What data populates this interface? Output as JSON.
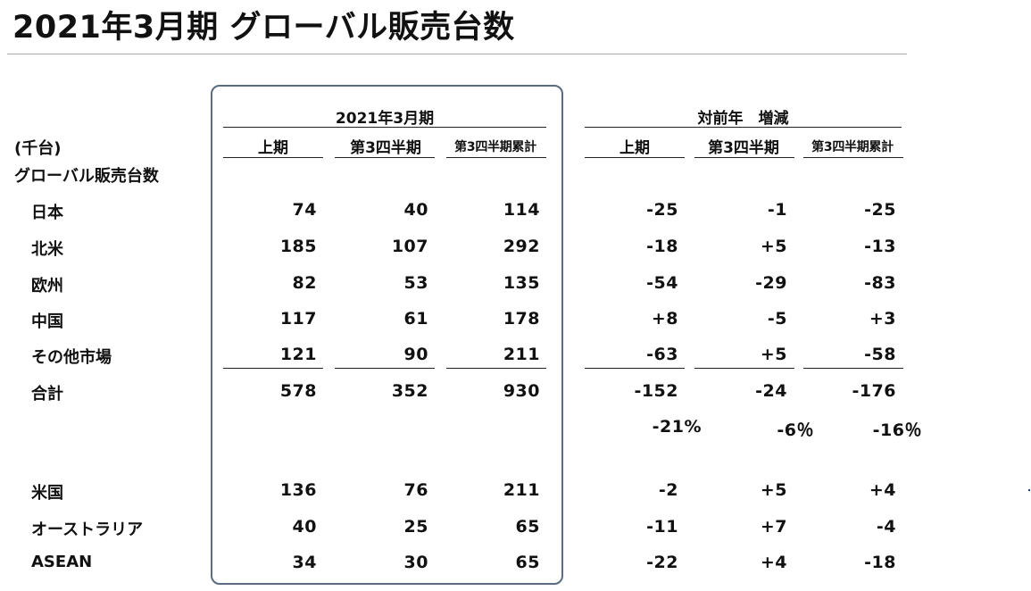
{
  "title": "2021年3月期 グローバル販売台数",
  "unit_label": "(千台)",
  "section_label": "グローバル販売台数",
  "group_current": "2021年3月期",
  "group_yoy": "対前年　増減",
  "col_headers": [
    "上期",
    "第3四半期",
    "第3四半期累計"
  ],
  "rows_main": [
    {
      "label": "日本",
      "current": [
        "74",
        "40",
        "114"
      ],
      "yoy": [
        "-25",
        "-1",
        "-25"
      ]
    },
    {
      "label": "北米",
      "current": [
        "185",
        "107",
        "292"
      ],
      "yoy": [
        "-18",
        "+5",
        "-13"
      ]
    },
    {
      "label": "欧州",
      "current": [
        "82",
        "53",
        "135"
      ],
      "yoy": [
        "-54",
        "-29",
        "-83"
      ]
    },
    {
      "label": "中国",
      "current": [
        "117",
        "61",
        "178"
      ],
      "yoy": [
        "+8",
        "-5",
        "+3"
      ]
    },
    {
      "label": "その他市場",
      "current": [
        "121",
        "90",
        "211"
      ],
      "yoy": [
        "-63",
        "+5",
        "-58"
      ]
    }
  ],
  "total": {
    "label": "合計",
    "current": [
      "578",
      "352",
      "930"
    ],
    "yoy": [
      "-152",
      "-24",
      "-176"
    ]
  },
  "total_pct": [
    "-21%",
    "-6％",
    "-16％"
  ],
  "rows_sub": [
    {
      "label": "米国",
      "current": [
        "136",
        "76",
        "211"
      ],
      "yoy": [
        "-2",
        "+5",
        "+4"
      ]
    },
    {
      "label": "オーストラリア",
      "current": [
        "40",
        "25",
        "65"
      ],
      "yoy": [
        "-11",
        "+7",
        "-4"
      ]
    },
    {
      "label": "ASEAN",
      "current": [
        "34",
        "30",
        "65"
      ],
      "yoy": [
        "-22",
        "+4",
        "-18"
      ]
    }
  ],
  "colors": {
    "box_border": "#5b6b80",
    "rule": "#a8a8a8",
    "text": "#111111"
  }
}
